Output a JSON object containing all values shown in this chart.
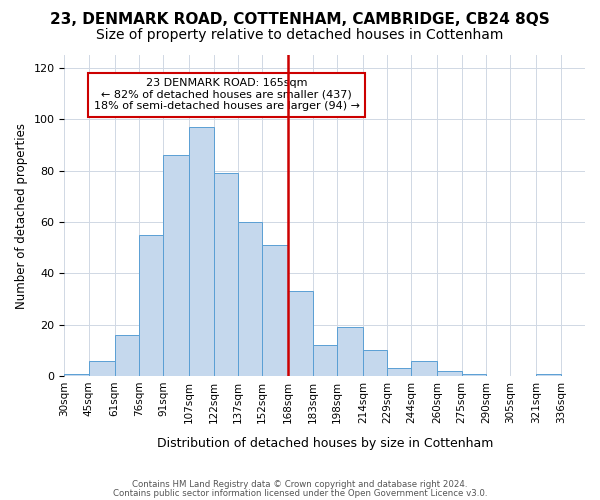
{
  "title": "23, DENMARK ROAD, COTTENHAM, CAMBRIDGE, CB24 8QS",
  "subtitle": "Size of property relative to detached houses in Cottenham",
  "xlabel": "Distribution of detached houses by size in Cottenham",
  "ylabel": "Number of detached properties",
  "bin_labels": [
    "30sqm",
    "45sqm",
    "61sqm",
    "76sqm",
    "91sqm",
    "107sqm",
    "122sqm",
    "137sqm",
    "152sqm",
    "168sqm",
    "183sqm",
    "198sqm",
    "214sqm",
    "229sqm",
    "244sqm",
    "260sqm",
    "275sqm",
    "290sqm",
    "305sqm",
    "321sqm",
    "336sqm"
  ],
  "bar_heights": [
    1,
    6,
    16,
    55,
    86,
    97,
    79,
    60,
    51,
    33,
    12,
    19,
    10,
    3,
    6,
    2,
    1,
    0,
    0,
    1
  ],
  "bar_color": "#c5d8ed",
  "bar_edge_color": "#5a9fd4",
  "grid_color": "#d0d8e4",
  "annotation_line1": "23 DENMARK ROAD: 165sqm",
  "annotation_line2": "← 82% of detached houses are smaller (437)",
  "annotation_line3": "18% of semi-detached houses are larger (94) →",
  "annotation_box_edge_color": "#cc0000",
  "vline_x": 168,
  "vline_color": "#cc0000",
  "bin_edges": [
    30,
    45,
    61,
    76,
    91,
    107,
    122,
    137,
    152,
    168,
    183,
    198,
    214,
    229,
    244,
    260,
    275,
    290,
    305,
    321,
    336
  ],
  "ylim": [
    0,
    125
  ],
  "yticks": [
    0,
    20,
    40,
    60,
    80,
    100,
    120
  ],
  "footer_line1": "Contains HM Land Registry data © Crown copyright and database right 2024.",
  "footer_line2": "Contains public sector information licensed under the Open Government Licence v3.0.",
  "title_fontsize": 11,
  "subtitle_fontsize": 10,
  "background_color": "#ffffff"
}
